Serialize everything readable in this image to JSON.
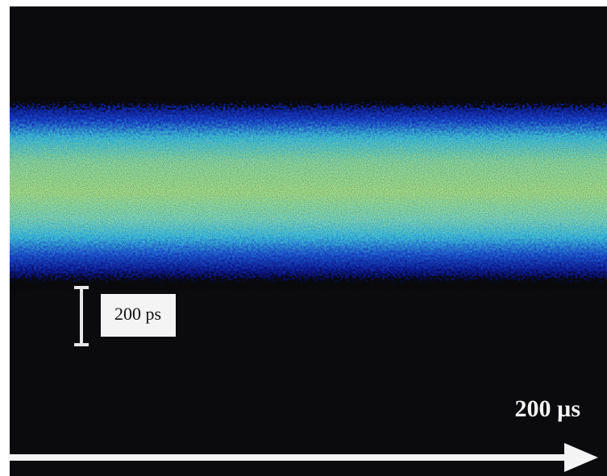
{
  "scale_bar": {
    "label": "200 ps"
  },
  "time_axis": {
    "label": "200 µs"
  }
}
